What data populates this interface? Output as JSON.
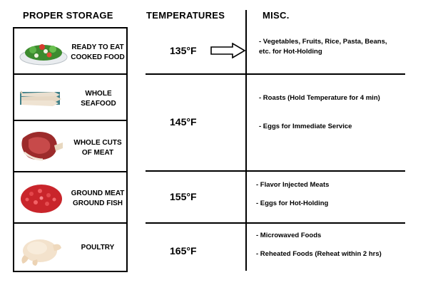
{
  "headers": {
    "storage": "PROPER STORAGE",
    "temperatures": "TEMPERATURES",
    "misc": "MISC."
  },
  "categories": [
    {
      "label": "READY TO EAT\nCOOKED FOOD",
      "icon": "salad-plate-icon"
    },
    {
      "label": "WHOLE\nSEAFOOD",
      "icon": "fish-icon"
    },
    {
      "label": "WHOLE CUTS\nOF MEAT",
      "icon": "meat-cut-icon"
    },
    {
      "label": "GROUND MEAT\nGROUND FISH",
      "icon": "ground-meat-icon"
    },
    {
      "label": "POULTRY",
      "icon": "raw-chicken-icon"
    }
  ],
  "temperatures": [
    "135°F",
    "145°F",
    "155°F",
    "165°F"
  ],
  "notes": {
    "row1": "- Vegetables, Fruits, Rice, Pasta, Beans,\n  etc. for Hot-Holding",
    "row2a": "- Roasts (Hold Temperature for 4 min)",
    "row2b": "- Eggs for Immediate Service",
    "row3a": "- Flavor Injected Meats",
    "row3b": "- Eggs for Hot-Holding",
    "row4a": "- Microwaved Foods",
    "row4b": "- Reheated Foods (Reheat within 2 hrs)"
  }
}
